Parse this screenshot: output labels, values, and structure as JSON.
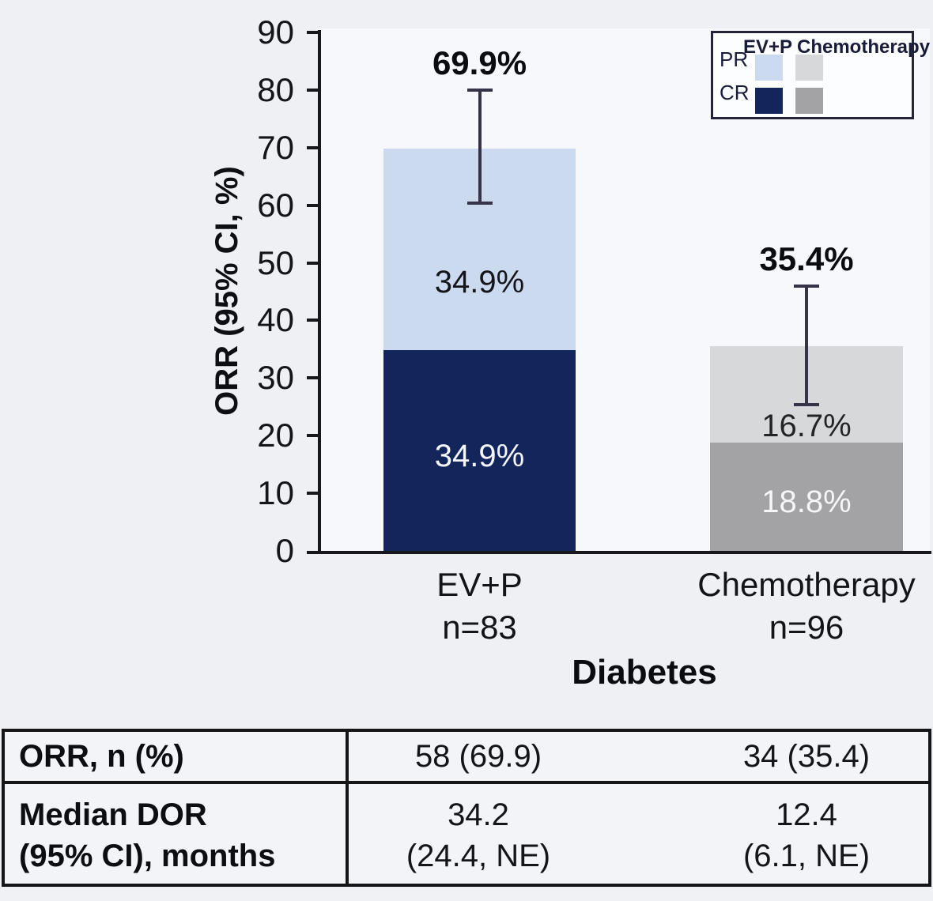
{
  "colors": {
    "background": "#eff0f3",
    "plot_background": "#f7f8fb",
    "axis": "#17171c",
    "error_bar": "#363248",
    "ev_pr": "#ccdaef",
    "ev_cr": "#13265c",
    "chemo_pr": "#d7d8da",
    "chemo_cr": "#a3a3a5",
    "legend_text": "#181c38",
    "table_border": "#151517"
  },
  "chart_data": {
    "type": "bar",
    "stacked": true,
    "title": "",
    "xlabel": "Diabetes",
    "ylabel": "ORR (95% CI, %)",
    "ylim": [
      0,
      90
    ],
    "yticks": [
      0,
      10,
      20,
      30,
      40,
      50,
      60,
      70,
      80,
      90
    ],
    "grid": false,
    "legend_position": "top-right",
    "categories": [
      "EV+P",
      "Chemotherapy"
    ],
    "category_sublabels": [
      "n=83",
      "n=96"
    ],
    "series": [
      {
        "name": "CR",
        "values": [
          34.9,
          18.8
        ],
        "colors": [
          "#13265c",
          "#a3a3a5"
        ],
        "label_colors": [
          "#f5f6f9",
          "#f5f6f9"
        ]
      },
      {
        "name": "PR",
        "values": [
          34.9,
          16.7
        ],
        "colors": [
          "#ccdaef",
          "#d7d8da"
        ],
        "label_colors": [
          "#15161c",
          "#232428"
        ]
      }
    ],
    "totals": [
      69.9,
      35.4
    ],
    "total_labels": [
      "69.9%",
      "35.4%"
    ],
    "segment_labels": {
      "cr": [
        "34.9%",
        "18.8%"
      ],
      "pr": [
        "34.9%",
        "16.7%"
      ]
    },
    "error_bars": [
      {
        "low": 60.4,
        "high": 80.0
      },
      {
        "low": 25.4,
        "high": 46.0
      }
    ],
    "legend": {
      "columns": [
        "EV+P",
        "Chemotherapy"
      ],
      "rows": [
        "PR",
        "CR"
      ]
    }
  },
  "table": {
    "rows": [
      {
        "label_lines": [
          "ORR, n (%)"
        ],
        "values": [
          [
            "58 (69.9)"
          ],
          [
            "34 (35.4)"
          ]
        ]
      },
      {
        "label_lines": [
          "Median DOR",
          "(95% CI), months"
        ],
        "values": [
          [
            "34.2",
            "(24.4, NE)"
          ],
          [
            "12.4",
            "(6.1, NE)"
          ]
        ]
      }
    ]
  }
}
